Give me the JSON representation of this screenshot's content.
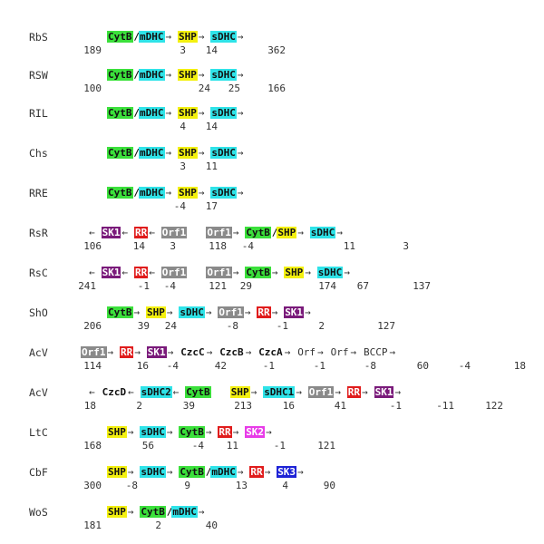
{
  "colors": {
    "green": "#3be03b",
    "cyan": "#2fe3e8",
    "yellow": "#f3f00f",
    "grey": "#8a8a8a",
    "red": "#e01c1c",
    "purple": "#7a1a7a",
    "magenta": "#e83be8",
    "blue": "#1e23d6"
  },
  "rows": [
    {
      "label": "RbS",
      "tokens": [
        {
          "t": "CytB",
          "c": "green"
        },
        {
          "t": "/",
          "c": "none"
        },
        {
          "t": "mDHC",
          "c": "cyan"
        },
        {
          "t": "→",
          "c": "arrow"
        },
        {
          "t": "SHP",
          "c": "yellow"
        },
        {
          "t": "→",
          "c": "arrow"
        },
        {
          "t": "sDHC",
          "c": "cyan"
        },
        {
          "t": "→",
          "c": "arrow"
        }
      ],
      "nums": [
        "189",
        "3",
        "14",
        "362"
      ]
    },
    {
      "label": "RSW",
      "tokens": [
        {
          "t": "CytB",
          "c": "green"
        },
        {
          "t": "/",
          "c": "none"
        },
        {
          "t": "mDHC",
          "c": "cyan"
        },
        {
          "t": "→",
          "c": "arrow"
        },
        {
          "t": "SHP",
          "c": "yellow"
        },
        {
          "t": "→",
          "c": "arrow"
        },
        {
          "t": "sDHC",
          "c": "cyan"
        },
        {
          "t": "→",
          "c": "arrow"
        }
      ],
      "nums": [
        "100",
        "24",
        "25",
        "166"
      ]
    },
    {
      "label": "RIL",
      "tokens": [
        {
          "t": "CytB",
          "c": "green"
        },
        {
          "t": "/",
          "c": "none"
        },
        {
          "t": "mDHC",
          "c": "cyan"
        },
        {
          "t": "→",
          "c": "arrow"
        },
        {
          "t": "SHP",
          "c": "yellow"
        },
        {
          "t": "→",
          "c": "arrow"
        },
        {
          "t": "sDHC",
          "c": "cyan"
        },
        {
          "t": "→",
          "c": "arrow"
        }
      ],
      "nums": [
        "",
        "4",
        "14",
        ""
      ]
    },
    {
      "label": "Chs",
      "tokens": [
        {
          "t": "CytB",
          "c": "green"
        },
        {
          "t": "/",
          "c": "none"
        },
        {
          "t": "mDHC",
          "c": "cyan"
        },
        {
          "t": "→",
          "c": "arrow"
        },
        {
          "t": "SHP",
          "c": "yellow"
        },
        {
          "t": "→",
          "c": "arrow"
        },
        {
          "t": "sDHC",
          "c": "cyan"
        },
        {
          "t": "→",
          "c": "arrow"
        }
      ],
      "nums": [
        "",
        "3",
        "11",
        ""
      ]
    },
    {
      "label": "RRE",
      "tokens": [
        {
          "t": "CytB",
          "c": "green"
        },
        {
          "t": "/",
          "c": "none"
        },
        {
          "t": "mDHC",
          "c": "cyan"
        },
        {
          "t": "→",
          "c": "arrow"
        },
        {
          "t": "SHP",
          "c": "yellow"
        },
        {
          "t": "→",
          "c": "arrow"
        },
        {
          "t": "sDHC",
          "c": "cyan"
        },
        {
          "t": "→",
          "c": "arrow"
        }
      ],
      "nums": [
        "",
        "-4",
        "17",
        ""
      ]
    },
    {
      "label": "RsR",
      "tokens": [
        {
          "t": "←",
          "c": "arrow"
        },
        {
          "t": "SK1",
          "c": "purple"
        },
        {
          "t": "←",
          "c": "arrow"
        },
        {
          "t": "RR",
          "c": "red"
        },
        {
          "t": "←",
          "c": "arrow"
        },
        {
          "t": "Orf1",
          "c": "grey"
        },
        {
          "t": "  ",
          "c": "none"
        },
        {
          "t": "Orf1",
          "c": "grey"
        },
        {
          "t": "→",
          "c": "arrow"
        },
        {
          "t": "CytB",
          "c": "green"
        },
        {
          "t": "/",
          "c": "none"
        },
        {
          "t": "SHP",
          "c": "yellow"
        },
        {
          "t": "→",
          "c": "arrow"
        },
        {
          "t": "sDHC",
          "c": "cyan"
        },
        {
          "t": "→",
          "c": "arrow"
        }
      ],
      "nums": [
        "106",
        "14",
        "3",
        "118",
        "-4",
        "11",
        "3"
      ]
    },
    {
      "label": "RsC",
      "tokens": [
        {
          "t": "←",
          "c": "arrow"
        },
        {
          "t": "SK1",
          "c": "purple"
        },
        {
          "t": "←",
          "c": "arrow"
        },
        {
          "t": "RR",
          "c": "red"
        },
        {
          "t": "←",
          "c": "arrow"
        },
        {
          "t": "Orf1",
          "c": "grey"
        },
        {
          "t": "  ",
          "c": "none"
        },
        {
          "t": "Orf1",
          "c": "grey"
        },
        {
          "t": "→",
          "c": "arrow"
        },
        {
          "t": "CytB",
          "c": "green"
        },
        {
          "t": "→",
          "c": "arrow"
        },
        {
          "t": "SHP",
          "c": "yellow"
        },
        {
          "t": "→",
          "c": "arrow"
        },
        {
          "t": "sDHC",
          "c": "cyan"
        },
        {
          "t": "→",
          "c": "arrow"
        }
      ],
      "nums": [
        "241",
        "-1",
        "-4",
        "121",
        "29",
        "174",
        "67",
        "137"
      ]
    },
    {
      "label": "ShO",
      "tokens": [
        {
          "t": "CytB",
          "c": "green"
        },
        {
          "t": "→",
          "c": "arrow"
        },
        {
          "t": "SHP",
          "c": "yellow"
        },
        {
          "t": "→",
          "c": "arrow"
        },
        {
          "t": "sDHC",
          "c": "cyan"
        },
        {
          "t": "→",
          "c": "arrow"
        },
        {
          "t": "Orf1",
          "c": "grey"
        },
        {
          "t": "→",
          "c": "arrow"
        },
        {
          "t": "RR",
          "c": "red"
        },
        {
          "t": "→",
          "c": "arrow"
        },
        {
          "t": "SK1",
          "c": "purple"
        },
        {
          "t": "→",
          "c": "arrow"
        }
      ],
      "nums": [
        "206",
        "39",
        "24",
        "-8",
        "-1",
        "2",
        "127"
      ]
    },
    {
      "label": "AcV",
      "tokens": [
        {
          "t": "Orf1",
          "c": "grey"
        },
        {
          "t": "→",
          "c": "arrow"
        },
        {
          "t": "RR",
          "c": "red"
        },
        {
          "t": "→",
          "c": "arrow"
        },
        {
          "t": "SK1",
          "c": "purple"
        },
        {
          "t": "→",
          "c": "arrow"
        },
        {
          "t": "CzcC",
          "c": "none"
        },
        {
          "t": "→",
          "c": "arrow"
        },
        {
          "t": "CzcB",
          "c": "none"
        },
        {
          "t": "→",
          "c": "arrow"
        },
        {
          "t": "CzcA",
          "c": "none"
        },
        {
          "t": "→",
          "c": "arrow"
        },
        {
          "t": "Orf",
          "c": "plain"
        },
        {
          "t": "→",
          "c": "arrow"
        },
        {
          "t": "Orf",
          "c": "plain"
        },
        {
          "t": "→",
          "c": "arrow"
        },
        {
          "t": "BCCP",
          "c": "plain"
        },
        {
          "t": "→",
          "c": "arrow"
        }
      ],
      "nums": [
        "114",
        "16",
        "-4",
        "42",
        "-1",
        "-1",
        "-8",
        "60",
        "-4",
        "18"
      ]
    },
    {
      "label": "AcV",
      "tokens": [
        {
          "t": "←",
          "c": "arrow"
        },
        {
          "t": "CzcD",
          "c": "none"
        },
        {
          "t": "←",
          "c": "arrow"
        },
        {
          "t": "sDHC2",
          "c": "cyan"
        },
        {
          "t": "←",
          "c": "arrow"
        },
        {
          "t": "CytB",
          "c": "green"
        },
        {
          "t": "  ",
          "c": "none"
        },
        {
          "t": "SHP",
          "c": "yellow"
        },
        {
          "t": "→",
          "c": "arrow"
        },
        {
          "t": "sDHC1",
          "c": "cyan"
        },
        {
          "t": "→",
          "c": "arrow"
        },
        {
          "t": "Orf1",
          "c": "grey"
        },
        {
          "t": "→",
          "c": "arrow"
        },
        {
          "t": "RR",
          "c": "red"
        },
        {
          "t": "→",
          "c": "arrow"
        },
        {
          "t": "SK1",
          "c": "purple"
        },
        {
          "t": "→",
          "c": "arrow"
        }
      ],
      "nums": [
        "18",
        "2",
        "39",
        "213",
        "16",
        "41",
        "-1",
        "-11",
        "122"
      ]
    },
    {
      "label": "LtC",
      "tokens": [
        {
          "t": "SHP",
          "c": "yellow"
        },
        {
          "t": "→",
          "c": "arrow"
        },
        {
          "t": "sDHC",
          "c": "cyan"
        },
        {
          "t": "→",
          "c": "arrow"
        },
        {
          "t": "CytB",
          "c": "green"
        },
        {
          "t": "→",
          "c": "arrow"
        },
        {
          "t": "RR",
          "c": "red"
        },
        {
          "t": "→",
          "c": "arrow"
        },
        {
          "t": "SK2",
          "c": "magenta"
        },
        {
          "t": "→",
          "c": "arrow"
        }
      ],
      "nums": [
        "168",
        "56",
        "-4",
        "11",
        "-1",
        "121"
      ]
    },
    {
      "label": "CbF",
      "tokens": [
        {
          "t": "SHP",
          "c": "yellow"
        },
        {
          "t": "→",
          "c": "arrow"
        },
        {
          "t": "sDHC",
          "c": "cyan"
        },
        {
          "t": "→",
          "c": "arrow"
        },
        {
          "t": "CytB",
          "c": "green"
        },
        {
          "t": "/",
          "c": "none"
        },
        {
          "t": "mDHC",
          "c": "cyan"
        },
        {
          "t": "→",
          "c": "arrow"
        },
        {
          "t": "RR",
          "c": "red"
        },
        {
          "t": "→",
          "c": "arrow"
        },
        {
          "t": "SK3",
          "c": "blue"
        },
        {
          "t": "→",
          "c": "arrow"
        }
      ],
      "nums": [
        "300",
        "-8",
        "9",
        "13",
        "4",
        "90"
      ]
    },
    {
      "label": "WoS",
      "tokens": [
        {
          "t": "SHP",
          "c": "yellow"
        },
        {
          "t": "→",
          "c": "arrow"
        },
        {
          "t": "CytB",
          "c": "green"
        },
        {
          "t": "/",
          "c": "none"
        },
        {
          "t": "mDHC",
          "c": "cyan"
        },
        {
          "t": "→",
          "c": "arrow"
        }
      ],
      "nums": [
        "181",
        "2",
        "40"
      ]
    }
  ]
}
